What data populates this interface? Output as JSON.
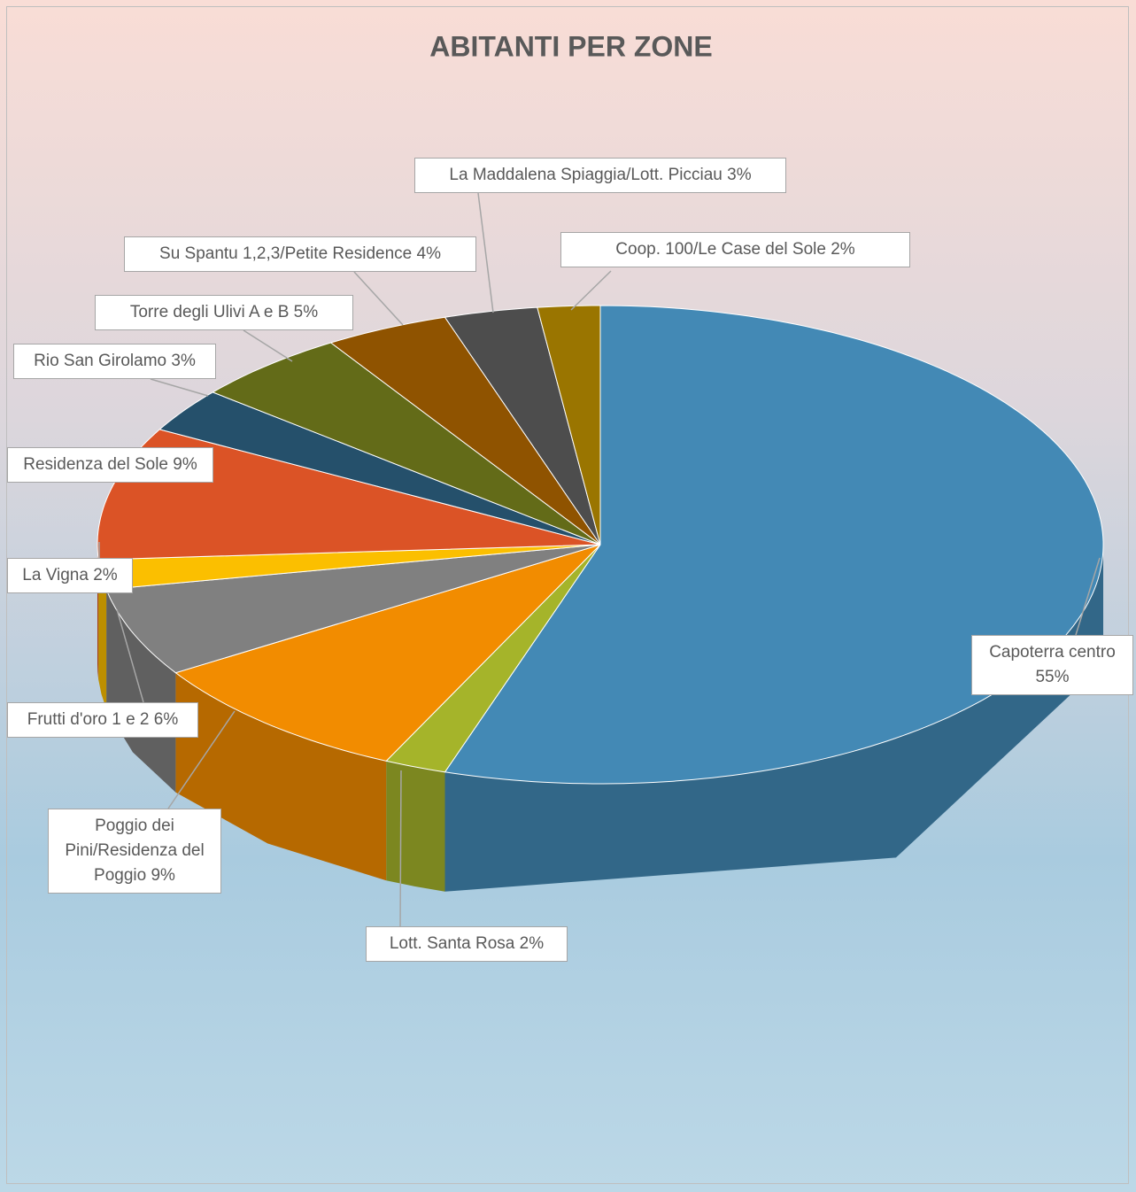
{
  "chart_data": {
    "type": "pie3d",
    "title": "ABITANTI PER ZONE",
    "categories": [
      "Capoterra centro",
      "Lott. Santa Rosa",
      "Poggio dei Pini/Residenza del Poggio",
      "Frutti d'oro 1 e 2",
      "La Vigna",
      "Residenza del Sole",
      "Rio San Girolamo",
      "Torre degli Ulivi A e B",
      "Su Spantu 1,2,3/Petite Residence",
      "La Maddalena Spiaggia/Lott. Picciau",
      "Coop. 100/Le Case del Sole"
    ],
    "values": [
      55,
      2,
      9,
      6,
      2,
      9,
      3,
      5,
      4,
      3,
      2
    ],
    "value_labels": [
      "55%",
      "2%",
      "9%",
      "6%",
      "2%",
      "9%",
      "3%",
      "5%",
      "4%",
      "3%",
      "2%"
    ],
    "colors": [
      "#4389b5",
      "#a5b42a",
      "#f28c00",
      "#808080",
      "#fbbf00",
      "#db5326",
      "#25506b",
      "#636b18",
      "#8f5300",
      "#4d4d4d",
      "#9a7500"
    ]
  }
}
